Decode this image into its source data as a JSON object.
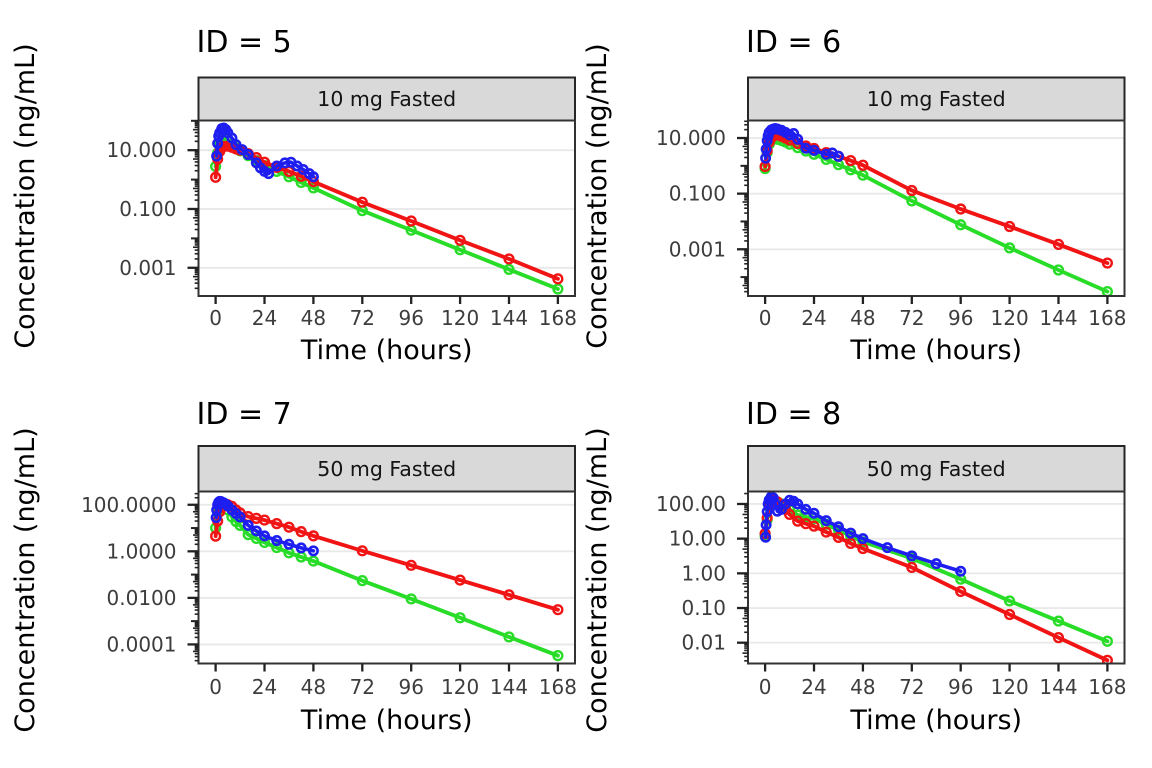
{
  "figure": {
    "x_axis_title": "Time (hours)",
    "y_axis_title": "Concentration (ng/mL)",
    "colors": {
      "blue": "#1E1EF0",
      "red": "#F01414",
      "green": "#28DC28",
      "strip_fill": "#D9D9D9",
      "strip_border": "#262626",
      "panel_border": "#333333",
      "grid": "#E9E9E9",
      "tick": "#222222",
      "tick_label": "#3D3D3D",
      "title": "#000000"
    }
  },
  "chart_data": [
    {
      "type": "line",
      "panel_id": "5",
      "title": "ID = 5",
      "strip_label": "10 mg Fasted",
      "xlabel": "Time (hours)",
      "ylabel": "Concentration (ng/mL)",
      "x_ticks": [
        0,
        24,
        48,
        72,
        96,
        120,
        144,
        168
      ],
      "xlim": [
        -8.4,
        176.4
      ],
      "ylim_log": [
        -3.96,
        2.01
      ],
      "y_ticks": [
        {
          "log": 1,
          "label": "10.000"
        },
        {
          "log": -1,
          "label": "0.100"
        },
        {
          "log": -3,
          "label": "0.001"
        }
      ],
      "series": [
        {
          "name": "simulated-green",
          "color": "green",
          "t": [
            0,
            1,
            2,
            3,
            4,
            6,
            8,
            10,
            12,
            16,
            20,
            24,
            30,
            36,
            42,
            48,
            72,
            96,
            120,
            144,
            168
          ],
          "y": [
            2.8,
            8,
            15,
            24,
            25,
            21,
            16,
            12,
            9.5,
            6.5,
            4.4,
            3.0,
            1.9,
            1.25,
            0.8,
            0.52,
            0.088,
            0.019,
            0.0041,
            0.00088,
            0.00019
          ]
        },
        {
          "name": "simulated-red",
          "color": "red",
          "t": [
            0,
            1,
            2,
            3,
            4,
            6,
            8,
            10,
            12,
            16,
            20,
            24,
            30,
            36,
            42,
            48,
            72,
            96,
            120,
            144,
            168
          ],
          "y": [
            1.2,
            5,
            9,
            12,
            13.5,
            13.7,
            12.5,
            11,
            10,
            7.6,
            5.6,
            3.9,
            2.6,
            1.9,
            1.3,
            0.85,
            0.17,
            0.039,
            0.0086,
            0.002,
            0.00042
          ]
        },
        {
          "name": "observed",
          "color": "blue",
          "t": [
            0.5,
            1,
            1.5,
            2,
            3,
            4,
            5,
            6,
            8,
            10,
            13,
            16,
            20,
            22,
            24,
            26,
            30,
            34,
            37,
            40,
            43,
            46,
            48
          ],
          "y": [
            6.3,
            17,
            30,
            39,
            54,
            57,
            50,
            39,
            26,
            15.5,
            10.5,
            7.1,
            3.7,
            2.5,
            1.9,
            1.6,
            2.9,
            3.7,
            3.9,
            2.9,
            2.2,
            1.6,
            1.25
          ]
        }
      ]
    },
    {
      "type": "line",
      "panel_id": "6",
      "title": "ID = 6",
      "strip_label": "10 mg Fasted",
      "xlabel": "Time (hours)",
      "ylabel": "Concentration (ng/mL)",
      "x_ticks": [
        0,
        24,
        48,
        72,
        96,
        120,
        144,
        168
      ],
      "xlim": [
        -8.4,
        176.4
      ],
      "ylim_log": [
        -4.68,
        1.63
      ],
      "y_ticks": [
        {
          "log": 1,
          "label": "10.000"
        },
        {
          "log": -1,
          "label": "0.100"
        },
        {
          "log": -3,
          "label": "0.001"
        }
      ],
      "series": [
        {
          "name": "simulated-green",
          "color": "green",
          "t": [
            0,
            1,
            2,
            3,
            4,
            6,
            8,
            10,
            12,
            16,
            20,
            24,
            30,
            36,
            42,
            48,
            72,
            96,
            120,
            144,
            168
          ],
          "y": [
            0.8,
            3,
            6,
            8.5,
            9.2,
            9.0,
            8.2,
            7.2,
            6.0,
            4.5,
            3.4,
            2.6,
            1.7,
            1.1,
            0.72,
            0.46,
            0.055,
            0.0076,
            0.00112,
            0.00018,
            3e-05
          ]
        },
        {
          "name": "simulated-red",
          "color": "red",
          "t": [
            0,
            1,
            2,
            3,
            4,
            6,
            8,
            10,
            12,
            16,
            20,
            24,
            30,
            36,
            42,
            48,
            72,
            96,
            120,
            144,
            168
          ],
          "y": [
            0.95,
            3.5,
            7,
            10,
            12,
            13,
            11.5,
            10,
            8.5,
            6.4,
            5.2,
            4.2,
            3.0,
            2.2,
            1.55,
            1.05,
            0.13,
            0.028,
            0.0066,
            0.0015,
            0.00032
          ]
        },
        {
          "name": "observed",
          "color": "blue",
          "t": [
            0.25,
            0.5,
            1,
            1.5,
            2,
            3,
            4,
            5,
            6,
            8,
            10,
            12,
            14,
            16,
            20,
            24,
            30,
            33,
            36
          ],
          "y": [
            1.9,
            4,
            8,
            12,
            16,
            19.5,
            21,
            22,
            21,
            19,
            16,
            13,
            14.5,
            9,
            4.3,
            3.6,
            2.6,
            2.9,
            2.2
          ]
        }
      ]
    },
    {
      "type": "line",
      "panel_id": "7",
      "title": "ID = 7",
      "strip_label": "50 mg Fasted",
      "xlabel": "Time (hours)",
      "ylabel": "Concentration (ng/mL)",
      "x_ticks": [
        0,
        24,
        48,
        72,
        96,
        120,
        144,
        168
      ],
      "xlim": [
        -8.4,
        176.4
      ],
      "ylim_log": [
        -4.82,
        2.57
      ],
      "y_ticks": [
        {
          "log": 2,
          "label": "100.0000"
        },
        {
          "log": 0,
          "label": "1.0000"
        },
        {
          "log": -2,
          "label": "0.0100"
        },
        {
          "log": -4,
          "label": "0.0001"
        }
      ],
      "series": [
        {
          "name": "simulated-green",
          "color": "green",
          "t": [
            0,
            1,
            2,
            3,
            4,
            6,
            8,
            10,
            12,
            16,
            20,
            24,
            30,
            36,
            42,
            48,
            72,
            96,
            120,
            144,
            168
          ],
          "y": [
            10,
            45,
            95,
            118,
            112,
            60,
            30,
            19,
            13,
            5.2,
            3.6,
            2.4,
            1.45,
            0.86,
            0.57,
            0.38,
            0.055,
            0.009,
            0.0014,
            0.00021,
            3.3e-05
          ]
        },
        {
          "name": "simulated-red",
          "color": "red",
          "t": [
            0,
            1,
            2,
            3,
            4,
            6,
            8,
            10,
            12,
            16,
            20,
            24,
            30,
            36,
            42,
            48,
            72,
            96,
            120,
            144,
            168
          ],
          "y": [
            4.5,
            20,
            50,
            78,
            92,
            100,
            85,
            60,
            45,
            31,
            26,
            22,
            15.5,
            10.9,
            7,
            4.6,
            1.05,
            0.25,
            0.058,
            0.0135,
            0.0031
          ]
        },
        {
          "name": "observed",
          "color": "blue",
          "t": [
            0.25,
            0.5,
            1,
            1.5,
            2,
            2.5,
            3,
            4,
            5,
            6,
            8,
            10,
            12,
            16,
            20,
            24,
            30,
            36,
            42,
            48
          ],
          "y": [
            28,
            60,
            100,
            128,
            140,
            138,
            132,
            120,
            105,
            88,
            60,
            42,
            30,
            13,
            7.5,
            4.6,
            2.9,
            2.0,
            1.4,
            1.05
          ]
        }
      ]
    },
    {
      "type": "line",
      "panel_id": "8",
      "title": "ID = 8",
      "strip_label": "50 mg Fasted",
      "xlabel": "Time (hours)",
      "ylabel": "Concentration (ng/mL)",
      "x_ticks": [
        0,
        24,
        48,
        72,
        96,
        120,
        144,
        168
      ],
      "xlim": [
        -8.4,
        176.4
      ],
      "ylim_log": [
        -2.6,
        2.36
      ],
      "y_ticks": [
        {
          "log": 2,
          "label": "100.00"
        },
        {
          "log": 1,
          "label": "10.00"
        },
        {
          "log": 0,
          "label": "1.00"
        },
        {
          "log": -1,
          "label": "0.10"
        },
        {
          "log": -2,
          "label": "0.01"
        }
      ],
      "series": [
        {
          "name": "simulated-green",
          "color": "green",
          "t": [
            0,
            1,
            2,
            3,
            4,
            6,
            8,
            10,
            12,
            16,
            20,
            24,
            30,
            36,
            42,
            48,
            72,
            96,
            120,
            144,
            168
          ],
          "y": [
            12,
            35,
            80,
            108,
            118,
            115,
            100,
            85,
            70,
            48,
            42,
            38,
            26,
            17.7,
            12,
            8.1,
            2.7,
            0.68,
            0.16,
            0.042,
            0.011
          ]
        },
        {
          "name": "simulated-red",
          "color": "red",
          "t": [
            0,
            1,
            2,
            3,
            4,
            6,
            8,
            10,
            12,
            16,
            20,
            24,
            30,
            36,
            42,
            48,
            72,
            96,
            120,
            144,
            168
          ],
          "y": [
            14,
            40,
            90,
            125,
            130,
            115,
            90,
            70,
            50,
            32,
            27,
            23,
            15.5,
            10.9,
            7.3,
            5.2,
            1.48,
            0.3,
            0.065,
            0.014,
            0.0031
          ]
        },
        {
          "name": "observed",
          "color": "blue",
          "t": [
            0.25,
            0.5,
            1,
            1.5,
            2,
            3,
            4,
            5,
            6,
            8,
            10,
            12,
            14,
            16,
            20,
            24,
            30,
            36,
            42,
            48,
            60,
            72,
            84,
            96
          ],
          "y": [
            11,
            25,
            60,
            100,
            130,
            162,
            150,
            100,
            62,
            70,
            100,
            128,
            120,
            100,
            70,
            54,
            33,
            22,
            14.5,
            10,
            5.5,
            3.2,
            1.9,
            1.15
          ]
        }
      ]
    }
  ]
}
